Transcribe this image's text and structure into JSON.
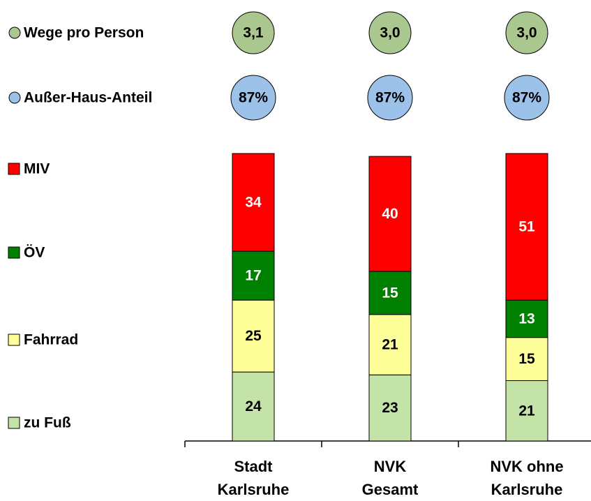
{
  "chart_data": {
    "type": "bar",
    "stacked": true,
    "categories": [
      "Stadt\nKarlsruhe",
      "NVK\nGesamt",
      "NVK ohne\nKarlsruhe"
    ],
    "series": [
      {
        "name": "zu Fuß",
        "color": "#c4e3a9",
        "label_color": "#000000",
        "values": [
          24,
          23,
          21
        ]
      },
      {
        "name": "Fahrrad",
        "color": "#ffff99",
        "label_color": "#000000",
        "values": [
          25,
          21,
          15
        ]
      },
      {
        "name": "ÖV",
        "color": "#008000",
        "label_color": "#ffffff",
        "values": [
          17,
          15,
          13
        ]
      },
      {
        "name": "MIV",
        "color": "#ff0000",
        "label_color": "#ffffff",
        "values": [
          34,
          40,
          51
        ]
      }
    ],
    "rows": [
      {
        "name": "Wege pro Person",
        "color": "#a9c78e",
        "values": [
          3.1,
          3.0,
          3.0
        ],
        "value_labels": [
          "3,1",
          "3,0",
          "3,0"
        ]
      },
      {
        "name": "Außer-Haus-Anteil",
        "color": "#9cc2ea",
        "values": [
          87,
          87,
          87
        ],
        "value_labels": [
          "87%",
          "87%",
          "87%"
        ]
      }
    ],
    "ylim": [
      0,
      100
    ]
  }
}
